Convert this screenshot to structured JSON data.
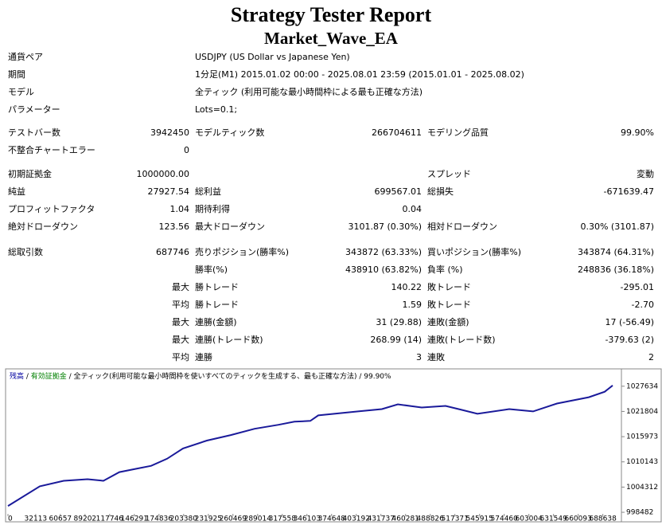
{
  "header": {
    "title": "Strategy Tester Report",
    "subtitle": "Market_Wave_EA"
  },
  "info": [
    [
      "通貨ペア",
      "USDJPY (US Dollar vs Japanese Yen)"
    ],
    [
      "期間",
      "1分足(M1) 2015.01.02 00:00 - 2025.08.01 23:59 (2015.01.01 - 2025.08.02)"
    ],
    [
      "モデル",
      "全ティック (利用可能な最小時間枠による最も正確な方法)"
    ],
    [
      "パラメーター",
      "Lots=0.1;"
    ]
  ],
  "stats": [
    [
      "テストバー数",
      "3942450",
      "モデルティック数",
      "266704611",
      "モデリング品質",
      "99.90%"
    ],
    [
      "不整合チャートエラー",
      "0",
      null,
      null,
      null,
      null
    ],
    [
      "初期証拠金",
      "1000000.00",
      null,
      null,
      "スプレッド",
      "変動"
    ],
    [
      "純益",
      "27927.54",
      "総利益",
      "699567.01",
      "総損失",
      "-671639.47"
    ],
    [
      "プロフィットファクタ",
      "1.04",
      "期待利得",
      "0.04",
      null,
      null
    ],
    [
      "絶対ドローダウン",
      "123.56",
      "最大ドローダウン",
      "3101.87 (0.30%)",
      "相対ドローダウン",
      "0.30% (3101.87)"
    ],
    [
      "総取引数",
      "687746",
      "売りポジション(勝率%)",
      "343872 (63.33%)",
      "買いポジション(勝率%)",
      "343874 (64.31%)"
    ],
    [
      null,
      null,
      "勝率(%)",
      "438910 (63.82%)",
      "負率 (%)",
      "248836 (36.18%)"
    ],
    [
      null,
      "最大",
      "勝トレード",
      "140.22",
      "敗トレード",
      "-295.01"
    ],
    [
      null,
      "平均",
      "勝トレード",
      "1.59",
      "敗トレード",
      "-2.70"
    ],
    [
      null,
      "最大",
      "連勝(金額)",
      "31 (29.88)",
      "連敗(金額)",
      "17 (-56.49)"
    ],
    [
      null,
      "最大",
      "連勝(トレード数)",
      "268.99 (14)",
      "連敗(トレード数)",
      "-379.63 (2)"
    ],
    [
      null,
      "平均",
      "連勝",
      "3",
      "連敗",
      "2"
    ]
  ],
  "chart": {
    "type": "line",
    "legend": [
      "残高",
      " / ",
      "有効証拠金",
      " / 全ティック(利用可能な最小時間枠を使いすべてのティックを生成する、最も正確な方法) / 99.90%"
    ],
    "legend_colors": [
      "#0000a0",
      "#000000",
      "#008000",
      "#000000"
    ],
    "color": "#1a1a9a",
    "x": [
      0,
      36842,
      64474,
      92105,
      110526,
      128947,
      147368,
      165789,
      184211,
      202632,
      230263,
      257895,
      285526,
      313158,
      331579,
      350000,
      359211,
      377632,
      405263,
      432895,
      451316,
      478947,
      506579,
      525000,
      543421,
      580263,
      607895,
      635526,
      672368,
      690789,
      700000
    ],
    "values": [
      999940,
      1004495,
      1005770,
      1006135,
      1005770,
      1007774,
      1008503,
      1009232,
      1010872,
      1013240,
      1015062,
      1016338,
      1017795,
      1018706,
      1019435,
      1019617,
      1020893,
      1021257,
      1021804,
      1022350,
      1023443,
      1022715,
      1023079,
      1022168,
      1021257,
      1022350,
      1021804,
      1023626,
      1025083,
      1026359,
      1027816
    ],
    "xlim": [
      0,
      700000
    ],
    "ylim": [
      997570,
      1031460
    ],
    "xticks": [
      0,
      32113,
      60657,
      89202,
      117746,
      146291,
      174836,
      203380,
      231925,
      260469,
      289014,
      317558,
      346103,
      374648,
      403192,
      431737,
      460281,
      488826,
      517371,
      545915,
      574460,
      603004,
      631549,
      660093,
      688638
    ],
    "yticks": [
      998482,
      1004312,
      1010143,
      1015973,
      1021804,
      1027634
    ]
  }
}
